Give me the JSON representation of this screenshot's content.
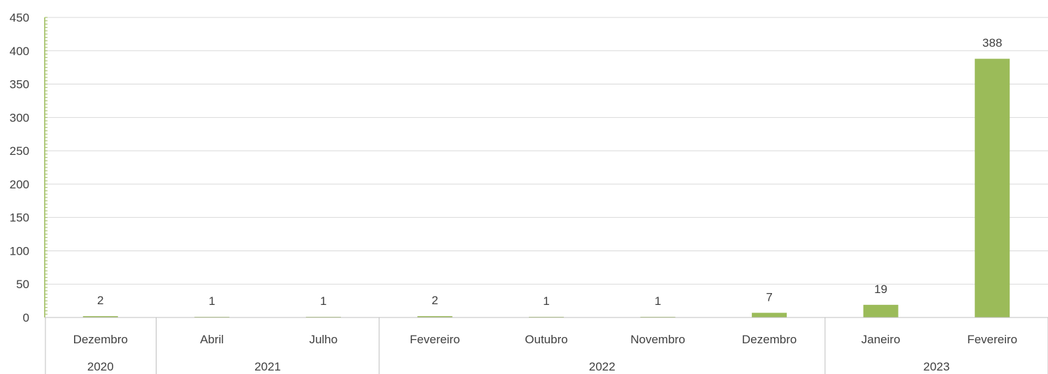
{
  "chart_data": {
    "type": "bar",
    "title": "",
    "xlabel": "",
    "ylabel": "",
    "ylim": [
      0,
      450
    ],
    "yticks": [
      0,
      50,
      100,
      150,
      200,
      250,
      300,
      350,
      400,
      450
    ],
    "grid": true,
    "legend": "none",
    "bar_color": "#9BBB59",
    "axis_color": "#9BBB59",
    "gridline_color": "#D9D9D9",
    "categories": [
      {
        "month": "Dezembro",
        "year": "2020"
      },
      {
        "month": "Abril",
        "year": "2021"
      },
      {
        "month": "Julho",
        "year": "2021"
      },
      {
        "month": "Fevereiro",
        "year": "2022"
      },
      {
        "month": "Outubro",
        "year": "2022"
      },
      {
        "month": "Novembro",
        "year": "2022"
      },
      {
        "month": "Dezembro",
        "year": "2022"
      },
      {
        "month": "Janeiro",
        "year": "2023"
      },
      {
        "month": "Fevereiro",
        "year": "2023"
      }
    ],
    "year_groups": [
      {
        "label": "2020",
        "count": 1
      },
      {
        "label": "2021",
        "count": 2
      },
      {
        "label": "2022",
        "count": 4
      },
      {
        "label": "2023",
        "count": 2
      }
    ],
    "values": [
      2,
      1,
      1,
      2,
      1,
      1,
      7,
      19,
      388
    ]
  }
}
